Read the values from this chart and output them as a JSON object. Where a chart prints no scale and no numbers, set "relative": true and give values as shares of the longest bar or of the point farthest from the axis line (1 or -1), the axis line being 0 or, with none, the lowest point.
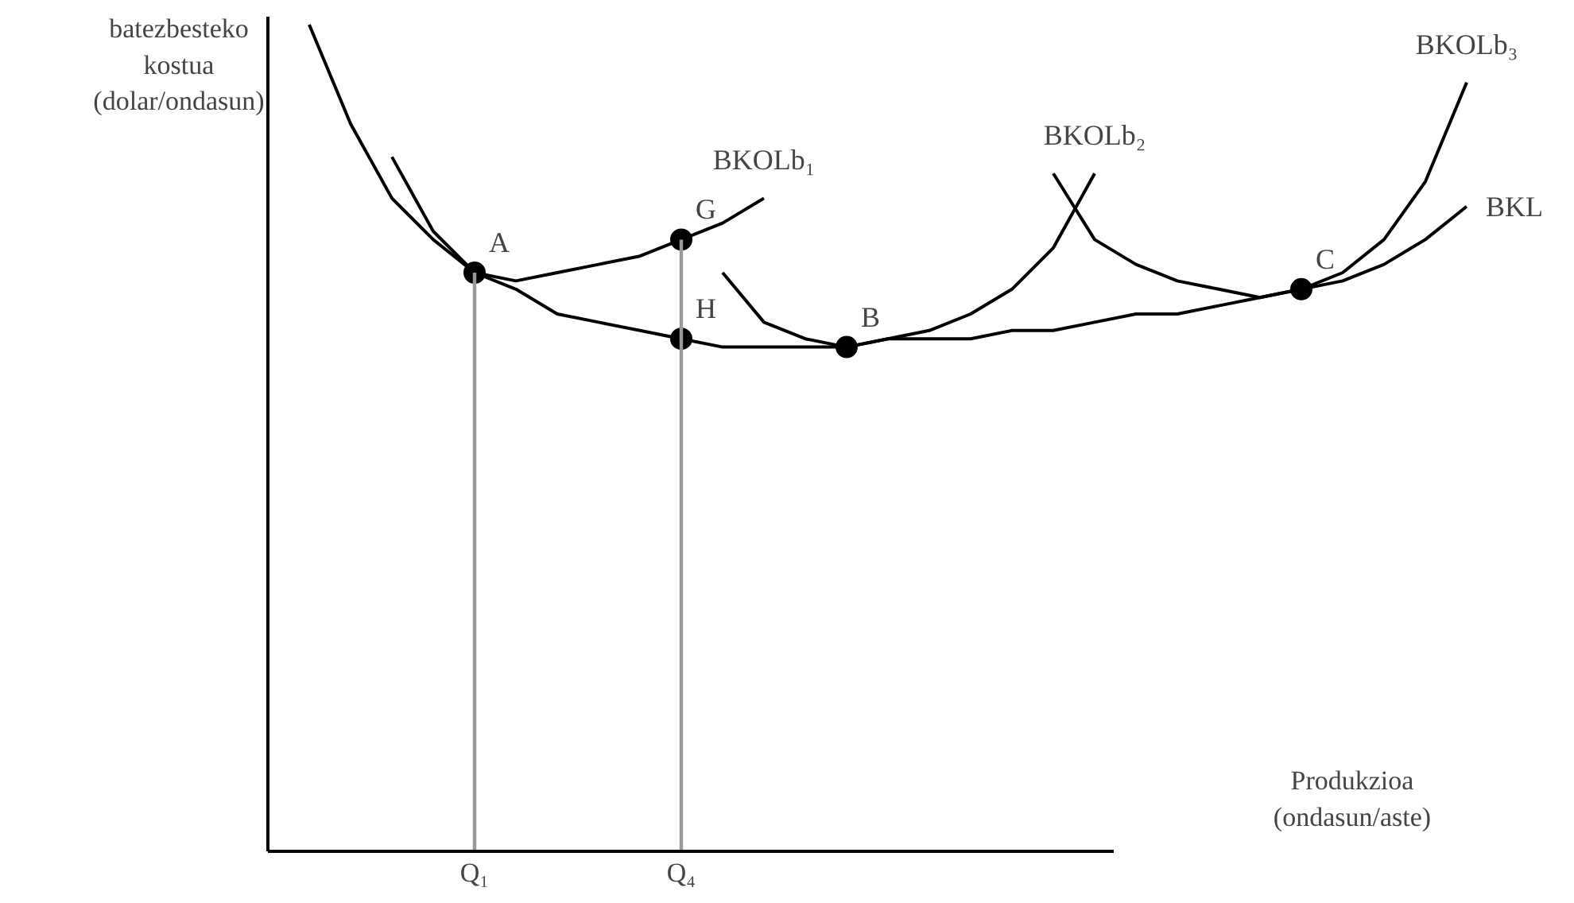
{
  "chart_data": {
    "type": "line",
    "relative": true,
    "ylabel": "batezbesteko kostua (dolar/ondasun)",
    "xlabel": "Produkzioa (ondasun/aste)",
    "categories": [
      null,
      null,
      null,
      null,
      "Q₁",
      null,
      null,
      null,
      null,
      "Q₄",
      null,
      null,
      null,
      null,
      null,
      null,
      null,
      null,
      null,
      null,
      null,
      null,
      null,
      null,
      null,
      null,
      null,
      null,
      null
    ],
    "tick_labels": "x",
    "grid": false,
    "legend": false,
    "line_style": "solid",
    "series": [
      {
        "name": "BKL",
        "color": "#000000",
        "values": [
          1.0,
          0.88,
          0.79,
          0.74,
          0.7,
          0.68,
          0.65,
          0.64,
          0.63,
          0.62,
          0.61,
          0.61,
          0.61,
          0.61,
          0.62,
          0.62,
          0.62,
          0.63,
          0.63,
          0.64,
          0.65,
          0.65,
          0.66,
          0.67,
          0.68,
          0.69,
          0.71,
          0.74,
          0.78
        ]
      },
      {
        "name": "BKOLb₁",
        "color": "#000000",
        "values": [
          null,
          null,
          0.84,
          0.75,
          0.7,
          0.69,
          0.7,
          0.71,
          0.72,
          0.74,
          0.76,
          0.79,
          null,
          null,
          null,
          null,
          null,
          null,
          null,
          null,
          null,
          null,
          null,
          null,
          null,
          null,
          null,
          null,
          null
        ]
      },
      {
        "name": "BKOLb₂",
        "color": "#000000",
        "values": [
          null,
          null,
          null,
          null,
          null,
          null,
          null,
          null,
          null,
          null,
          0.7,
          0.64,
          0.62,
          0.61,
          0.62,
          0.63,
          0.65,
          0.68,
          0.73,
          0.82,
          null,
          null,
          null,
          null,
          null,
          null,
          null,
          null,
          null
        ]
      },
      {
        "name": "BKOLb₃",
        "color": "#000000",
        "values": [
          null,
          null,
          null,
          null,
          null,
          null,
          null,
          null,
          null,
          null,
          null,
          null,
          null,
          null,
          null,
          null,
          null,
          null,
          0.82,
          0.74,
          0.71,
          0.69,
          0.68,
          0.67,
          0.68,
          0.7,
          0.74,
          0.81,
          0.93
        ]
      },
      {
        "type": "bar",
        "color": "#999999",
        "values": [
          null,
          null,
          null,
          null,
          0.7,
          null,
          null,
          null,
          null,
          0.74,
          null,
          null,
          null,
          null,
          null,
          null,
          null,
          null,
          null,
          null,
          null,
          null,
          null,
          null,
          null,
          null,
          null,
          null,
          null
        ]
      },
      {
        "name": "A",
        "type": "scatter",
        "marker": "circle",
        "color": "#000000",
        "values": [
          null,
          null,
          null,
          null,
          0.7,
          null,
          null,
          null,
          null,
          null,
          null,
          null,
          null,
          null,
          null,
          null,
          null,
          null,
          null,
          null,
          null,
          null,
          null,
          null,
          null,
          null,
          null,
          null,
          null
        ]
      },
      {
        "name": "G",
        "type": "scatter",
        "marker": "circle",
        "color": "#000000",
        "values": [
          null,
          null,
          null,
          null,
          null,
          null,
          null,
          null,
          null,
          0.74,
          null,
          null,
          null,
          null,
          null,
          null,
          null,
          null,
          null,
          null,
          null,
          null,
          null,
          null,
          null,
          null,
          null,
          null,
          null
        ]
      },
      {
        "name": "H",
        "type": "scatter",
        "marker": "circle",
        "color": "#000000",
        "values": [
          null,
          null,
          null,
          null,
          null,
          null,
          null,
          null,
          null,
          0.62,
          null,
          null,
          null,
          null,
          null,
          null,
          null,
          null,
          null,
          null,
          null,
          null,
          null,
          null,
          null,
          null,
          null,
          null,
          null
        ]
      },
      {
        "name": "B",
        "type": "scatter",
        "marker": "circle",
        "color": "#000000",
        "values": [
          null,
          null,
          null,
          null,
          null,
          null,
          null,
          null,
          null,
          null,
          null,
          null,
          null,
          0.61,
          null,
          null,
          null,
          null,
          null,
          null,
          null,
          null,
          null,
          null,
          null,
          null,
          null,
          null,
          null
        ]
      },
      {
        "name": "C",
        "type": "scatter",
        "marker": "circle",
        "color": "#000000",
        "values": [
          null,
          null,
          null,
          null,
          null,
          null,
          null,
          null,
          null,
          null,
          null,
          null,
          null,
          null,
          null,
          null,
          null,
          null,
          null,
          null,
          null,
          null,
          null,
          null,
          0.68,
          null,
          null,
          null,
          null
        ]
      }
    ]
  }
}
